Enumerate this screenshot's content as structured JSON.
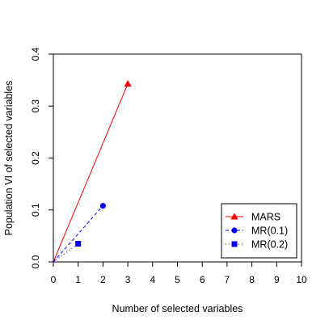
{
  "chart_data": {
    "type": "line",
    "title": "",
    "xlabel": "Number of selected variables",
    "ylabel": "Population VI of selected variables",
    "xlim": [
      0,
      10
    ],
    "ylim": [
      0,
      0.4
    ],
    "x_ticks": [
      0,
      1,
      2,
      3,
      4,
      5,
      6,
      7,
      8,
      9,
      10
    ],
    "y_ticks": [
      0.0,
      0.1,
      0.2,
      0.3,
      0.4
    ],
    "y_tick_labels": [
      "0.0",
      "0.1",
      "0.2",
      "0.3",
      "0.4"
    ],
    "grid": false,
    "legend_position": "bottom-right",
    "series": [
      {
        "name": "MARS",
        "color": "#ff0000",
        "line_style": "solid",
        "marker": "triangle",
        "points": [
          {
            "x": 0,
            "y": 0
          },
          {
            "x": 3,
            "y": 0.343
          }
        ]
      },
      {
        "name": "MR(0.1)",
        "color": "#0000ff",
        "line_style": "dashed",
        "marker": "circle",
        "points": [
          {
            "x": 0,
            "y": 0
          },
          {
            "x": 2,
            "y": 0.108
          }
        ]
      },
      {
        "name": "MR(0.2)",
        "color": "#0000ff",
        "line_style": "dotted",
        "marker": "square",
        "points": [
          {
            "x": 0,
            "y": 0
          },
          {
            "x": 1,
            "y": 0.035
          }
        ]
      }
    ]
  }
}
